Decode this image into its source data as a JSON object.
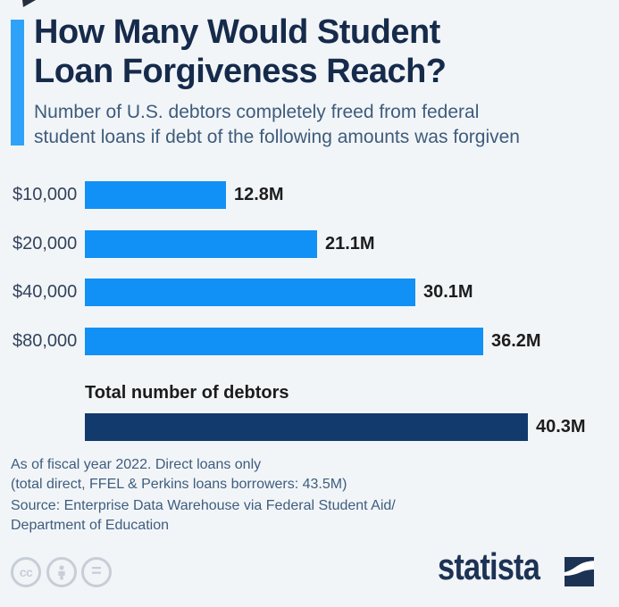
{
  "header": {
    "title_line1": "How Many Would Student",
    "title_line2": "Loan Forgiveness Reach?",
    "subtitle_line1": "Number of U.S. debtors completely freed from federal",
    "subtitle_line2": "student loans if debt of the following amounts was forgiven"
  },
  "chart_data": {
    "type": "bar",
    "orientation": "horizontal",
    "unit": "M",
    "categories": [
      "$10,000",
      "$20,000",
      "$40,000",
      "$80,000"
    ],
    "values": [
      12.8,
      21.1,
      30.1,
      36.2
    ],
    "value_labels": [
      "12.8M",
      "21.1M",
      "30.1M",
      "36.2M"
    ],
    "total": {
      "label": "Total number of debtors",
      "value": 40.3,
      "value_label": "40.3M"
    },
    "xlim": [
      0,
      40.3
    ],
    "bar_color": "#1191f5",
    "total_bar_color": "#133a6d",
    "grid": false,
    "legend": false
  },
  "footer": {
    "note_line1": "As of fiscal year 2022. Direct loans only",
    "note_line2": "(total direct, FFEL & Perkins loans borrowers: 43.5M)",
    "source_line1": "Source: Enterprise Data Warehouse via Federal Student Aid/",
    "source_line2": "Department of Education"
  },
  "branding": {
    "logo_text": "statista",
    "cc_label": "cc",
    "nd_label": "="
  },
  "colors": {
    "background": "#f2f5f8",
    "accent_bar": "#2ea2f8",
    "bar_blue": "#1191f5",
    "bar_navy": "#133a6d",
    "title": "#162b4b",
    "subtitle": "#3e5c7c",
    "footer_text": "#3e5d7e",
    "license_gray": "#c7ced7",
    "logo_navy": "#1d3354"
  }
}
